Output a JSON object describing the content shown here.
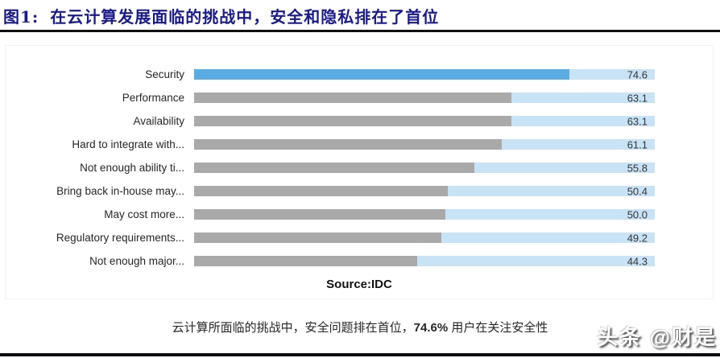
{
  "header": {
    "figure_label": "图1:",
    "title": "在云计算发展面临的挑战中，安全和隐私排在了首位"
  },
  "chart_data": {
    "type": "bar",
    "orientation": "horizontal",
    "title": "",
    "xlabel": "",
    "ylabel": "",
    "xlim": [
      0,
      91.6
    ],
    "grid": false,
    "legend": false,
    "categories": [
      "Security",
      "Performance",
      "Availability",
      "Hard to integrate with...",
      "Not enough ability ti...",
      "Bring back in-house may...",
      "May cost more...",
      "Regulatory requirements...",
      "Not enough major..."
    ],
    "values": [
      74.6,
      63.1,
      63.1,
      61.1,
      55.8,
      50.4,
      50.0,
      49.2,
      44.3
    ],
    "value_decimals": 1,
    "highlight_index": 0,
    "colors": {
      "highlight_bar": "#5aade3",
      "default_bar": "#a9a9a9",
      "track": "#c9e3f6",
      "value_text": "#333333"
    },
    "source": "Source:IDC"
  },
  "caption": {
    "prefix": "云计算所面临的挑战中，安全问题排在首位，",
    "highlight": "74.6%",
    "suffix": " 用户在关注安全性"
  },
  "watermark": {
    "text": "头条 @财是"
  },
  "colors": {
    "title_text": "#1a1a8c",
    "rule": "#101010"
  }
}
